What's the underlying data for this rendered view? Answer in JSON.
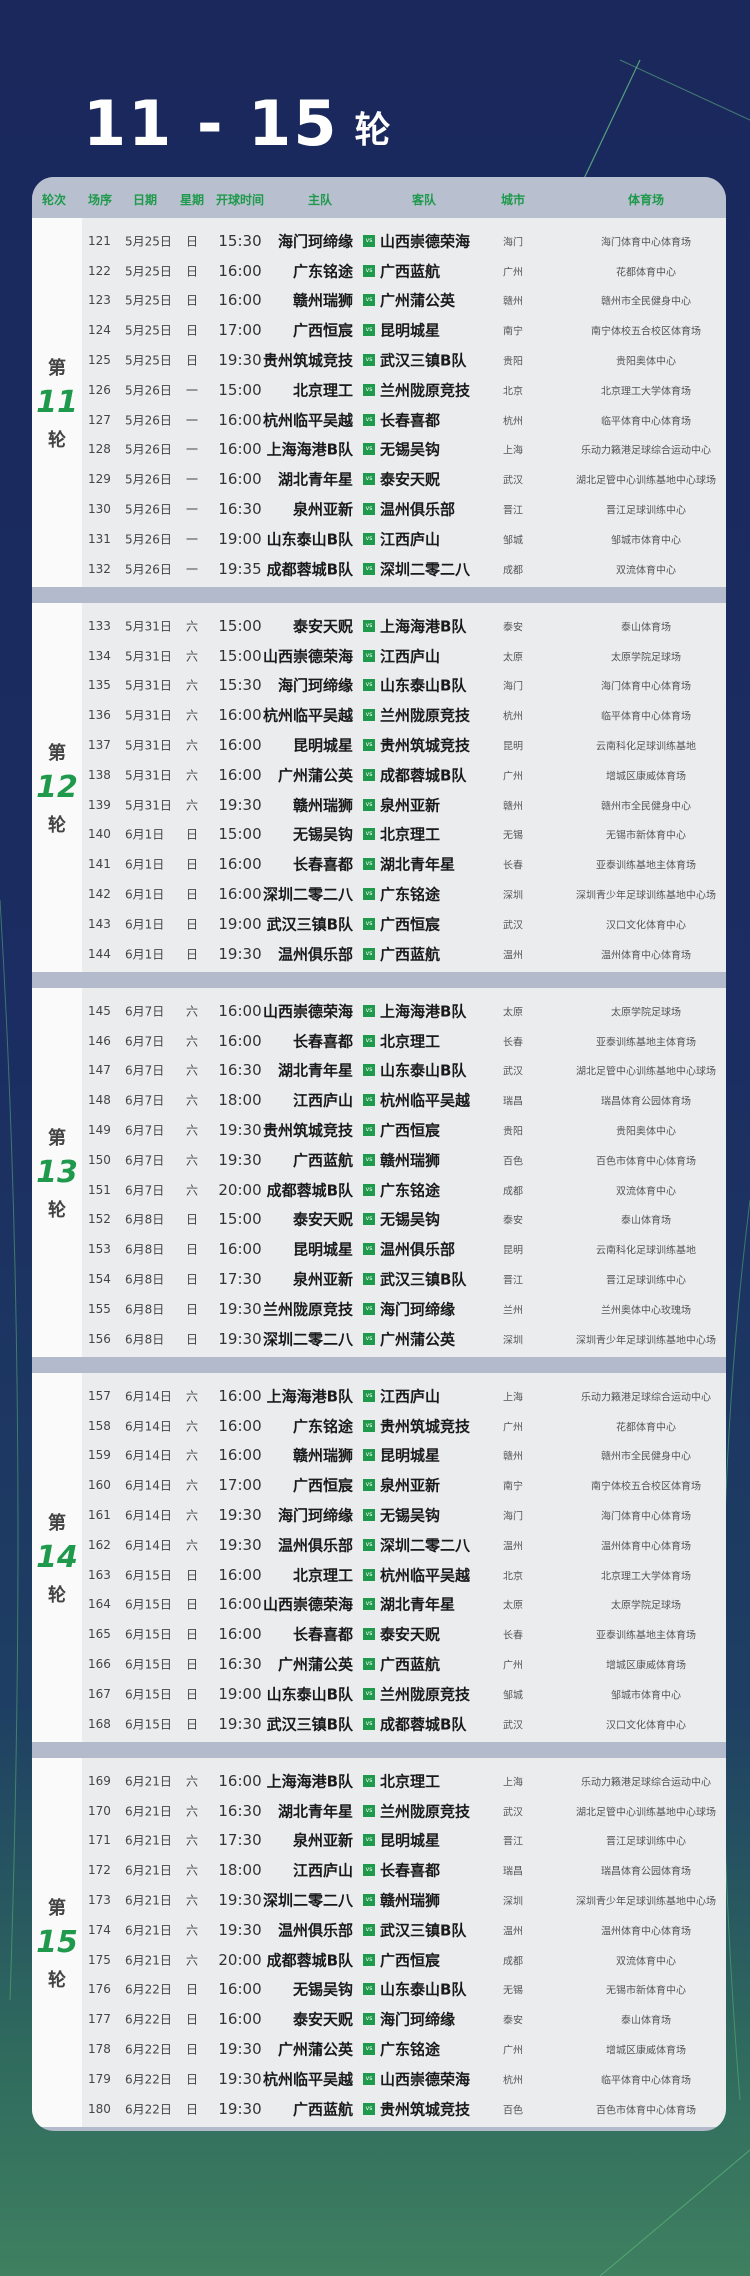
{
  "title": {
    "range": "11 - 15",
    "suffix": "轮"
  },
  "header": [
    "轮次",
    "场序",
    "日期",
    "星期",
    "开球时间",
    "主队",
    "客队",
    "城市",
    "体育场"
  ],
  "vs_label": "vs",
  "colors": {
    "accent": "#1f9a4c",
    "background_top": "#1a285c",
    "background_bottom": "#3f8060"
  },
  "rounds": [
    {
      "prefix": "第",
      "number": "11",
      "suffix": "轮",
      "rows": [
        [
          "121",
          "5月25日",
          "日",
          "15:30",
          "海门珂缔缘",
          "山西崇德荣海",
          "海门",
          "海门体育中心体育场"
        ],
        [
          "122",
          "5月25日",
          "日",
          "16:00",
          "广东铭途",
          "广西蓝航",
          "广州",
          "花都体育中心"
        ],
        [
          "123",
          "5月25日",
          "日",
          "16:00",
          "赣州瑞狮",
          "广州蒲公英",
          "赣州",
          "赣州市全民健身中心"
        ],
        [
          "124",
          "5月25日",
          "日",
          "17:00",
          "广西恒宸",
          "昆明城星",
          "南宁",
          "南宁体校五合校区体育场"
        ],
        [
          "125",
          "5月25日",
          "日",
          "19:30",
          "贵州筑城竞技",
          "武汉三镇B队",
          "贵阳",
          "贵阳奥体中心"
        ],
        [
          "126",
          "5月26日",
          "一",
          "15:00",
          "北京理工",
          "兰州陇原竞技",
          "北京",
          "北京理工大学体育场"
        ],
        [
          "127",
          "5月26日",
          "一",
          "16:00",
          "杭州临平吴越",
          "长春喜都",
          "杭州",
          "临平体育中心体育场"
        ],
        [
          "128",
          "5月26日",
          "一",
          "16:00",
          "上海海港B队",
          "无锡吴钩",
          "上海",
          "乐动力籁港足球综合运动中心"
        ],
        [
          "129",
          "5月26日",
          "一",
          "16:00",
          "湖北青年星",
          "泰安天贶",
          "武汉",
          "湖北足管中心训练基地中心球场"
        ],
        [
          "130",
          "5月26日",
          "一",
          "16:30",
          "泉州亚新",
          "温州俱乐部",
          "晋江",
          "晋江足球训练中心"
        ],
        [
          "131",
          "5月26日",
          "一",
          "19:00",
          "山东泰山B队",
          "江西庐山",
          "邹城",
          "邹城市体育中心"
        ],
        [
          "132",
          "5月26日",
          "一",
          "19:35",
          "成都蓉城B队",
          "深圳二零二八",
          "成都",
          "双流体育中心"
        ]
      ]
    },
    {
      "prefix": "第",
      "number": "12",
      "suffix": "轮",
      "rows": [
        [
          "133",
          "5月31日",
          "六",
          "15:00",
          "泰安天贶",
          "上海海港B队",
          "泰安",
          "泰山体育场"
        ],
        [
          "134",
          "5月31日",
          "六",
          "15:00",
          "山西崇德荣海",
          "江西庐山",
          "太原",
          "太原学院足球场"
        ],
        [
          "135",
          "5月31日",
          "六",
          "15:30",
          "海门珂缔缘",
          "山东泰山B队",
          "海门",
          "海门体育中心体育场"
        ],
        [
          "136",
          "5月31日",
          "六",
          "16:00",
          "杭州临平吴越",
          "兰州陇原竞技",
          "杭州",
          "临平体育中心体育场"
        ],
        [
          "137",
          "5月31日",
          "六",
          "16:00",
          "昆明城星",
          "贵州筑城竞技",
          "昆明",
          "云南科化足球训练基地"
        ],
        [
          "138",
          "5月31日",
          "六",
          "16:00",
          "广州蒲公英",
          "成都蓉城B队",
          "广州",
          "增城区康威体育场"
        ],
        [
          "139",
          "5月31日",
          "六",
          "19:30",
          "赣州瑞狮",
          "泉州亚新",
          "赣州",
          "赣州市全民健身中心"
        ],
        [
          "140",
          "6月1日",
          "日",
          "15:00",
          "无锡吴钩",
          "北京理工",
          "无锡",
          "无锡市新体育中心"
        ],
        [
          "141",
          "6月1日",
          "日",
          "16:00",
          "长春喜都",
          "湖北青年星",
          "长春",
          "亚泰训练基地主体育场"
        ],
        [
          "142",
          "6月1日",
          "日",
          "16:00",
          "深圳二零二八",
          "广东铭途",
          "深圳",
          "深圳青少年足球训练基地中心场"
        ],
        [
          "143",
          "6月1日",
          "日",
          "19:00",
          "武汉三镇B队",
          "广西恒宸",
          "武汉",
          "汉口文化体育中心"
        ],
        [
          "144",
          "6月1日",
          "日",
          "19:30",
          "温州俱乐部",
          "广西蓝航",
          "温州",
          "温州体育中心体育场"
        ]
      ]
    },
    {
      "prefix": "第",
      "number": "13",
      "suffix": "轮",
      "rows": [
        [
          "145",
          "6月7日",
          "六",
          "16:00",
          "山西崇德荣海",
          "上海海港B队",
          "太原",
          "太原学院足球场"
        ],
        [
          "146",
          "6月7日",
          "六",
          "16:00",
          "长春喜都",
          "北京理工",
          "长春",
          "亚泰训练基地主体育场"
        ],
        [
          "147",
          "6月7日",
          "六",
          "16:30",
          "湖北青年星",
          "山东泰山B队",
          "武汉",
          "湖北足管中心训练基地中心球场"
        ],
        [
          "148",
          "6月7日",
          "六",
          "18:00",
          "江西庐山",
          "杭州临平吴越",
          "瑞昌",
          "瑞昌体育公园体育场"
        ],
        [
          "149",
          "6月7日",
          "六",
          "19:30",
          "贵州筑城竞技",
          "广西恒宸",
          "贵阳",
          "贵阳奥体中心"
        ],
        [
          "150",
          "6月7日",
          "六",
          "19:30",
          "广西蓝航",
          "赣州瑞狮",
          "百色",
          "百色市体育中心体育场"
        ],
        [
          "151",
          "6月7日",
          "六",
          "20:00",
          "成都蓉城B队",
          "广东铭途",
          "成都",
          "双流体育中心"
        ],
        [
          "152",
          "6月8日",
          "日",
          "15:00",
          "泰安天贶",
          "无锡吴钩",
          "泰安",
          "泰山体育场"
        ],
        [
          "153",
          "6月8日",
          "日",
          "16:00",
          "昆明城星",
          "温州俱乐部",
          "昆明",
          "云南科化足球训练基地"
        ],
        [
          "154",
          "6月8日",
          "日",
          "17:30",
          "泉州亚新",
          "武汉三镇B队",
          "晋江",
          "晋江足球训练中心"
        ],
        [
          "155",
          "6月8日",
          "日",
          "19:30",
          "兰州陇原竞技",
          "海门珂缔缘",
          "兰州",
          "兰州奥体中心玫瑰场"
        ],
        [
          "156",
          "6月8日",
          "日",
          "19:30",
          "深圳二零二八",
          "广州蒲公英",
          "深圳",
          "深圳青少年足球训练基地中心场"
        ]
      ]
    },
    {
      "prefix": "第",
      "number": "14",
      "suffix": "轮",
      "rows": [
        [
          "157",
          "6月14日",
          "六",
          "16:00",
          "上海海港B队",
          "江西庐山",
          "上海",
          "乐动力籁港足球综合运动中心"
        ],
        [
          "158",
          "6月14日",
          "六",
          "16:00",
          "广东铭途",
          "贵州筑城竞技",
          "广州",
          "花都体育中心"
        ],
        [
          "159",
          "6月14日",
          "六",
          "16:00",
          "赣州瑞狮",
          "昆明城星",
          "赣州",
          "赣州市全民健身中心"
        ],
        [
          "160",
          "6月14日",
          "六",
          "17:00",
          "广西恒宸",
          "泉州亚新",
          "南宁",
          "南宁体校五合校区体育场"
        ],
        [
          "161",
          "6月14日",
          "六",
          "19:30",
          "海门珂缔缘",
          "无锡吴钩",
          "海门",
          "海门体育中心体育场"
        ],
        [
          "162",
          "6月14日",
          "六",
          "19:30",
          "温州俱乐部",
          "深圳二零二八",
          "温州",
          "温州体育中心体育场"
        ],
        [
          "163",
          "6月15日",
          "日",
          "16:00",
          "北京理工",
          "杭州临平吴越",
          "北京",
          "北京理工大学体育场"
        ],
        [
          "164",
          "6月15日",
          "日",
          "16:00",
          "山西崇德荣海",
          "湖北青年星",
          "太原",
          "太原学院足球场"
        ],
        [
          "165",
          "6月15日",
          "日",
          "16:00",
          "长春喜都",
          "泰安天贶",
          "长春",
          "亚泰训练基地主体育场"
        ],
        [
          "166",
          "6月15日",
          "日",
          "16:30",
          "广州蒲公英",
          "广西蓝航",
          "广州",
          "增城区康威体育场"
        ],
        [
          "167",
          "6月15日",
          "日",
          "19:00",
          "山东泰山B队",
          "兰州陇原竞技",
          "邹城",
          "邹城市体育中心"
        ],
        [
          "168",
          "6月15日",
          "日",
          "19:30",
          "武汉三镇B队",
          "成都蓉城B队",
          "武汉",
          "汉口文化体育中心"
        ]
      ]
    },
    {
      "prefix": "第",
      "number": "15",
      "suffix": "轮",
      "rows": [
        [
          "169",
          "6月21日",
          "六",
          "16:00",
          "上海海港B队",
          "北京理工",
          "上海",
          "乐动力籁港足球综合运动中心"
        ],
        [
          "170",
          "6月21日",
          "六",
          "16:30",
          "湖北青年星",
          "兰州陇原竞技",
          "武汉",
          "湖北足管中心训练基地中心球场"
        ],
        [
          "171",
          "6月21日",
          "六",
          "17:30",
          "泉州亚新",
          "昆明城星",
          "晋江",
          "晋江足球训练中心"
        ],
        [
          "172",
          "6月21日",
          "六",
          "18:00",
          "江西庐山",
          "长春喜都",
          "瑞昌",
          "瑞昌体育公园体育场"
        ],
        [
          "173",
          "6月21日",
          "六",
          "19:30",
          "深圳二零二八",
          "赣州瑞狮",
          "深圳",
          "深圳青少年足球训练基地中心场"
        ],
        [
          "174",
          "6月21日",
          "六",
          "19:30",
          "温州俱乐部",
          "武汉三镇B队",
          "温州",
          "温州体育中心体育场"
        ],
        [
          "175",
          "6月21日",
          "六",
          "20:00",
          "成都蓉城B队",
          "广西恒宸",
          "成都",
          "双流体育中心"
        ],
        [
          "176",
          "6月22日",
          "日",
          "16:00",
          "无锡吴钩",
          "山东泰山B队",
          "无锡",
          "无锡市新体育中心"
        ],
        [
          "177",
          "6月22日",
          "日",
          "16:00",
          "泰安天贶",
          "海门珂缔缘",
          "泰安",
          "泰山体育场"
        ],
        [
          "178",
          "6月22日",
          "日",
          "19:30",
          "广州蒲公英",
          "广东铭途",
          "广州",
          "增城区康威体育场"
        ],
        [
          "179",
          "6月22日",
          "日",
          "19:30",
          "杭州临平吴越",
          "山西崇德荣海",
          "杭州",
          "临平体育中心体育场"
        ],
        [
          "180",
          "6月22日",
          "日",
          "19:30",
          "广西蓝航",
          "贵州筑城竞技",
          "百色",
          "百色市体育中心体育场"
        ]
      ]
    }
  ]
}
